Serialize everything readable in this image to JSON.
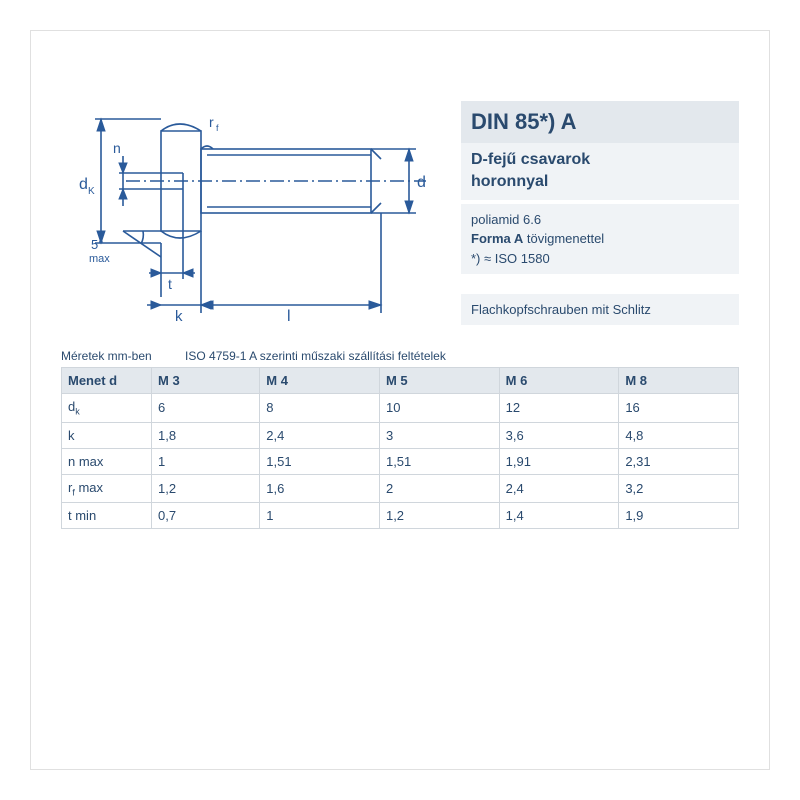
{
  "standard": {
    "title": "DIN 85*) A",
    "subtitle_line1": "D-fejű csavarok",
    "subtitle_line2": "horonnyal",
    "material": "poliamid 6.6",
    "form_bold": "Forma A",
    "form_rest": " tövigmenettel",
    "equiv": "*) ≈ ISO 1580",
    "german": "Flachkopfschrauben mit Schlitz"
  },
  "captions": {
    "units": "Méretek mm-ben",
    "spec": "ISO 4759-1 A szerinti műszaki szállítási feltételek"
  },
  "diagram": {
    "color": "#2a5a9a",
    "labels": {
      "dk": "d",
      "dk_sub": "K",
      "n": "n",
      "angle": "5°",
      "max": "max",
      "rf": "r",
      "rf_sub": "f",
      "t": "t",
      "k": "k",
      "l": "l",
      "d": "d"
    }
  },
  "table": {
    "header": [
      "Menet d",
      "M 3",
      "M 4",
      "M 5",
      "M 6",
      "M 8"
    ],
    "rows": [
      {
        "label_html": "d<span class=\"sub\">k</span>",
        "vals": [
          "6",
          "8",
          "10",
          "12",
          "16"
        ]
      },
      {
        "label_html": "k",
        "vals": [
          "1,8",
          "2,4",
          "3",
          "3,6",
          "4,8"
        ]
      },
      {
        "label_html": "n max",
        "vals": [
          "1",
          "1,51",
          "1,51",
          "1,91",
          "2,31"
        ]
      },
      {
        "label_html": "r<span class=\"sub\">f</span> max",
        "vals": [
          "1,2",
          "1,6",
          "2",
          "2,4",
          "3,2"
        ]
      },
      {
        "label_html": "t min",
        "vals": [
          "0,7",
          "1",
          "1,2",
          "1,4",
          "1,9"
        ]
      }
    ],
    "styling": {
      "header_bg": "#e3e8ed",
      "cell_border": "#d0d6dc",
      "text_color": "#2a4a6e",
      "fontsize": 13
    }
  }
}
